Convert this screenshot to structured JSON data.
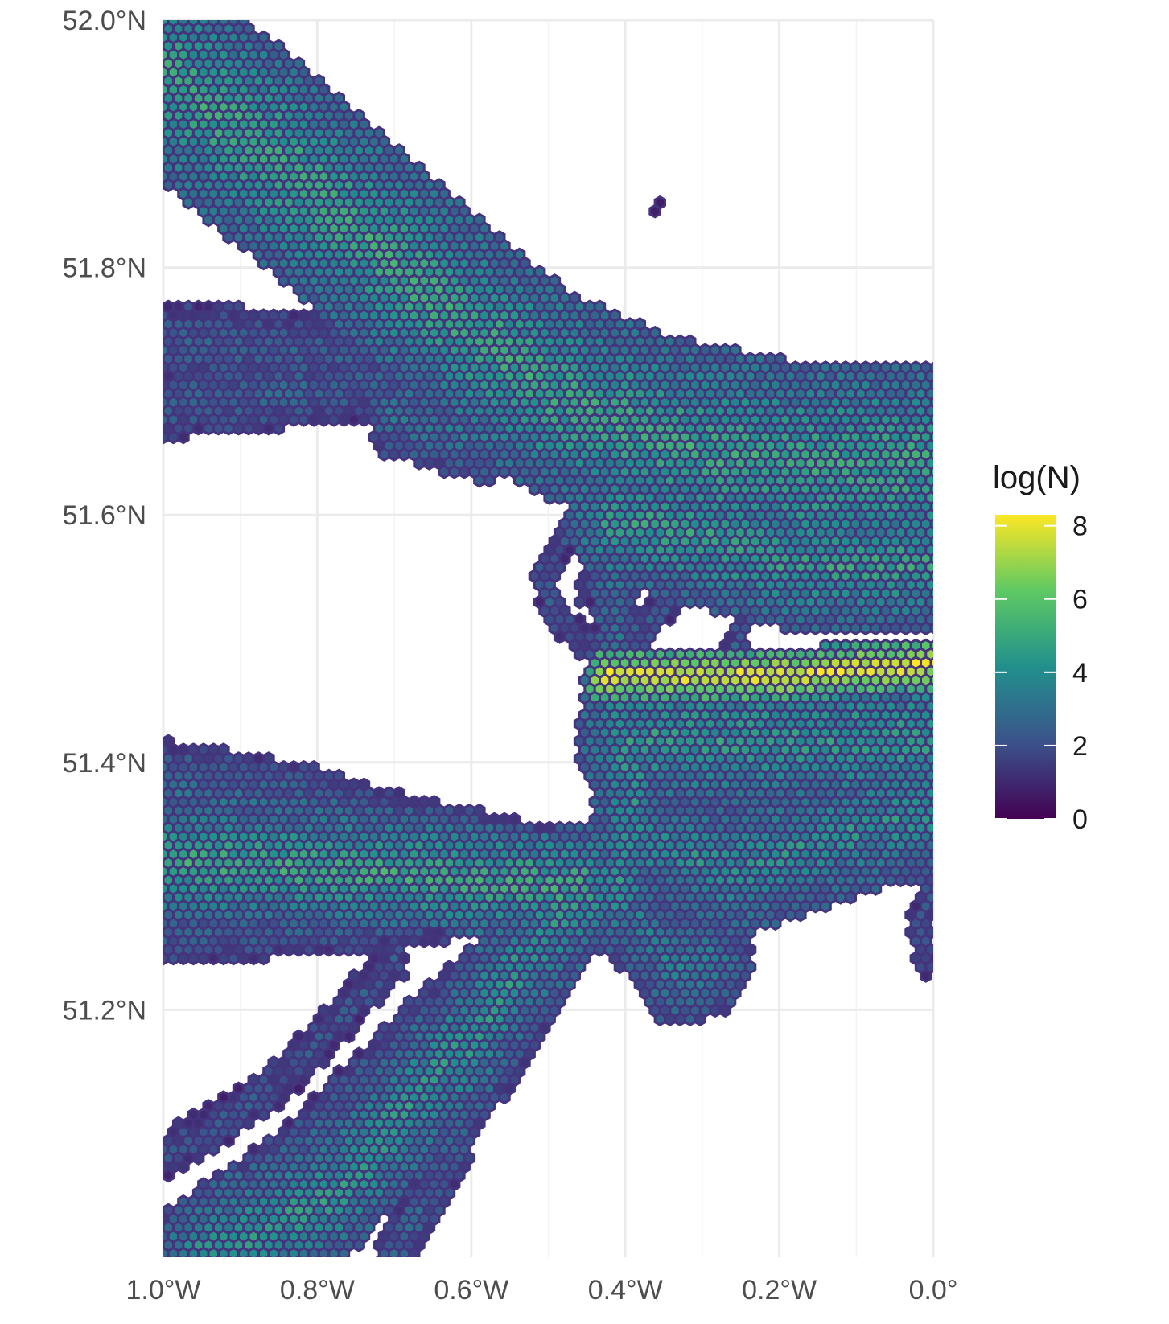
{
  "chart_data": {
    "type": "heatmap",
    "subtype": "hexbin-map",
    "title": "",
    "xlabel": "",
    "ylabel": "",
    "x_ticks": [
      "1.0°W",
      "0.8°W",
      "0.6°W",
      "0.4°W",
      "0.2°W",
      "0.0°"
    ],
    "y_ticks": [
      "51.2°N",
      "51.4°N",
      "51.6°N",
      "51.8°N",
      "52.0°N"
    ],
    "xlim": [
      -1.0,
      0.0
    ],
    "ylim": [
      51.0,
      52.0
    ],
    "grid": true,
    "legend": {
      "title": "log(N)",
      "position": "right",
      "colormap": "viridis",
      "range": [
        0,
        8.3
      ],
      "ticks": [
        "0",
        "2",
        "4",
        "6",
        "8"
      ]
    },
    "colors": {
      "outline": "#46337e",
      "v0": "#440154",
      "v2": "#3b528b",
      "v4": "#21908c",
      "v6": "#5dc963",
      "v8": "#fde725"
    },
    "tracks": [
      {
        "name": "",
        "points": [
          [
            -1.0,
            51.96
          ],
          [
            -0.8,
            51.86
          ],
          [
            -0.62,
            51.76
          ],
          [
            -0.5,
            51.7
          ],
          [
            -0.35,
            51.66
          ],
          [
            -0.18,
            51.64
          ],
          [
            0.0,
            51.64
          ]
        ],
        "width": 0.16,
        "value": 4.8
      },
      {
        "name": "",
        "points": [
          [
            -1.0,
            51.74
          ],
          [
            -0.82,
            51.73
          ],
          [
            -0.68,
            51.73
          ]
        ],
        "width": 0.06,
        "value": 2.5
      },
      {
        "name": "",
        "points": [
          [
            -1.0,
            51.69
          ],
          [
            -0.82,
            51.7
          ],
          [
            -0.68,
            51.71
          ]
        ],
        "width": 0.05,
        "value": 2.6
      },
      {
        "name": "",
        "points": [
          [
            -0.7,
            51.68
          ],
          [
            -0.58,
            51.66
          ],
          [
            -0.5,
            51.68
          ]
        ],
        "width": 0.06,
        "value": 3.2
      },
      {
        "name": "",
        "points": [
          [
            -0.45,
            51.66
          ],
          [
            -0.42,
            51.56
          ],
          [
            -0.4,
            51.46
          ]
        ],
        "width": 0.05,
        "value": 3.2
      },
      {
        "name": "",
        "points": [
          [
            -0.43,
            51.47
          ],
          [
            -0.2,
            51.47
          ],
          [
            0.0,
            51.48
          ]
        ],
        "width": 0.035,
        "value": 7.9
      },
      {
        "name": "",
        "points": [
          [
            -0.42,
            51.6
          ],
          [
            -0.18,
            51.56
          ],
          [
            0.0,
            51.56
          ]
        ],
        "width": 0.1,
        "value": 4.6
      },
      {
        "name": "",
        "points": [
          [
            -0.4,
            51.42
          ],
          [
            -0.2,
            51.42
          ],
          [
            0.0,
            51.42
          ]
        ],
        "width": 0.12,
        "value": 4.4
      },
      {
        "name": "",
        "points": [
          [
            -0.41,
            51.45
          ],
          [
            -0.39,
            51.38
          ],
          [
            -0.41,
            51.3
          ]
        ],
        "width": 0.09,
        "value": 4.2
      },
      {
        "name": "",
        "points": [
          [
            -0.38,
            51.34
          ],
          [
            -0.26,
            51.31
          ],
          [
            -0.18,
            51.33
          ],
          [
            -0.08,
            51.35
          ],
          [
            0.0,
            51.36
          ]
        ],
        "width": 0.1,
        "value": 4.1
      },
      {
        "name": "",
        "points": [
          [
            -0.45,
            51.3
          ],
          [
            -0.38,
            51.27
          ],
          [
            -0.34,
            51.23
          ],
          [
            -0.28,
            51.24
          ]
        ],
        "width": 0.08,
        "value": 3.5
      },
      {
        "name": "",
        "points": [
          [
            -1.0,
            51.32
          ],
          [
            -0.7,
            51.31
          ],
          [
            -0.46,
            51.3
          ]
        ],
        "width": 0.08,
        "value": 5.0
      },
      {
        "name": "",
        "points": [
          [
            -1.0,
            51.38
          ],
          [
            -0.72,
            51.35
          ],
          [
            -0.5,
            51.32
          ]
        ],
        "width": 0.05,
        "value": 3.0
      },
      {
        "name": "",
        "points": [
          [
            -1.0,
            51.4
          ],
          [
            -0.82,
            51.38
          ],
          [
            -0.66,
            51.35
          ]
        ],
        "width": 0.03,
        "value": 2.4
      },
      {
        "name": "",
        "points": [
          [
            -1.0,
            51.26
          ],
          [
            -0.75,
            51.27
          ],
          [
            -0.5,
            51.29
          ]
        ],
        "width": 0.04,
        "value": 2.6
      },
      {
        "name": "",
        "points": [
          [
            -0.46,
            51.3
          ],
          [
            -0.6,
            51.18
          ],
          [
            -0.78,
            51.05
          ],
          [
            -0.95,
            51.0
          ]
        ],
        "width": 0.1,
        "value": 4.3
      },
      {
        "name": "",
        "points": [
          [
            -0.5,
            51.28
          ],
          [
            -0.68,
            51.18
          ],
          [
            -0.84,
            51.08
          ],
          [
            -0.98,
            51.02
          ]
        ],
        "width": 0.04,
        "value": 2.6
      },
      {
        "name": "",
        "points": [
          [
            -0.48,
            51.24
          ],
          [
            -0.6,
            51.12
          ],
          [
            -0.7,
            51.0
          ]
        ],
        "width": 0.04,
        "value": 2.7
      },
      {
        "name": "",
        "points": [
          [
            -0.7,
            51.24
          ],
          [
            -0.85,
            51.14
          ],
          [
            -1.0,
            51.08
          ]
        ],
        "width": 0.03,
        "value": 2.2
      },
      {
        "name": "",
        "points": [
          [
            -0.45,
            51.54
          ],
          [
            -0.43,
            51.6
          ],
          [
            -0.48,
            51.58
          ],
          [
            -0.51,
            51.55
          ],
          [
            -0.48,
            51.51
          ],
          [
            -0.43,
            51.49
          ]
        ],
        "width": 0.02,
        "value": 2.3
      },
      {
        "name": "",
        "points": [
          [
            -0.4,
            51.47
          ],
          [
            -0.36,
            51.52
          ],
          [
            -0.29,
            51.56
          ],
          [
            -0.24,
            51.53
          ],
          [
            -0.27,
            51.47
          ]
        ],
        "width": 0.02,
        "value": 2.4
      },
      {
        "name": "",
        "points": [
          [
            -0.3,
            51.44
          ],
          [
            -0.22,
            51.42
          ],
          [
            -0.15,
            51.44
          ],
          [
            -0.14,
            51.48
          ]
        ],
        "width": 0.02,
        "value": 2.4
      },
      {
        "name": "",
        "points": [
          [
            0.0,
            51.3
          ],
          [
            -0.02,
            51.27
          ],
          [
            -0.01,
            51.24
          ]
        ],
        "width": 0.02,
        "value": 2.2
      },
      {
        "name": "",
        "points": [
          [
            -0.36,
            51.85
          ],
          [
            -0.36,
            51.85
          ]
        ],
        "width": 0.008,
        "value": 1.5
      }
    ]
  }
}
